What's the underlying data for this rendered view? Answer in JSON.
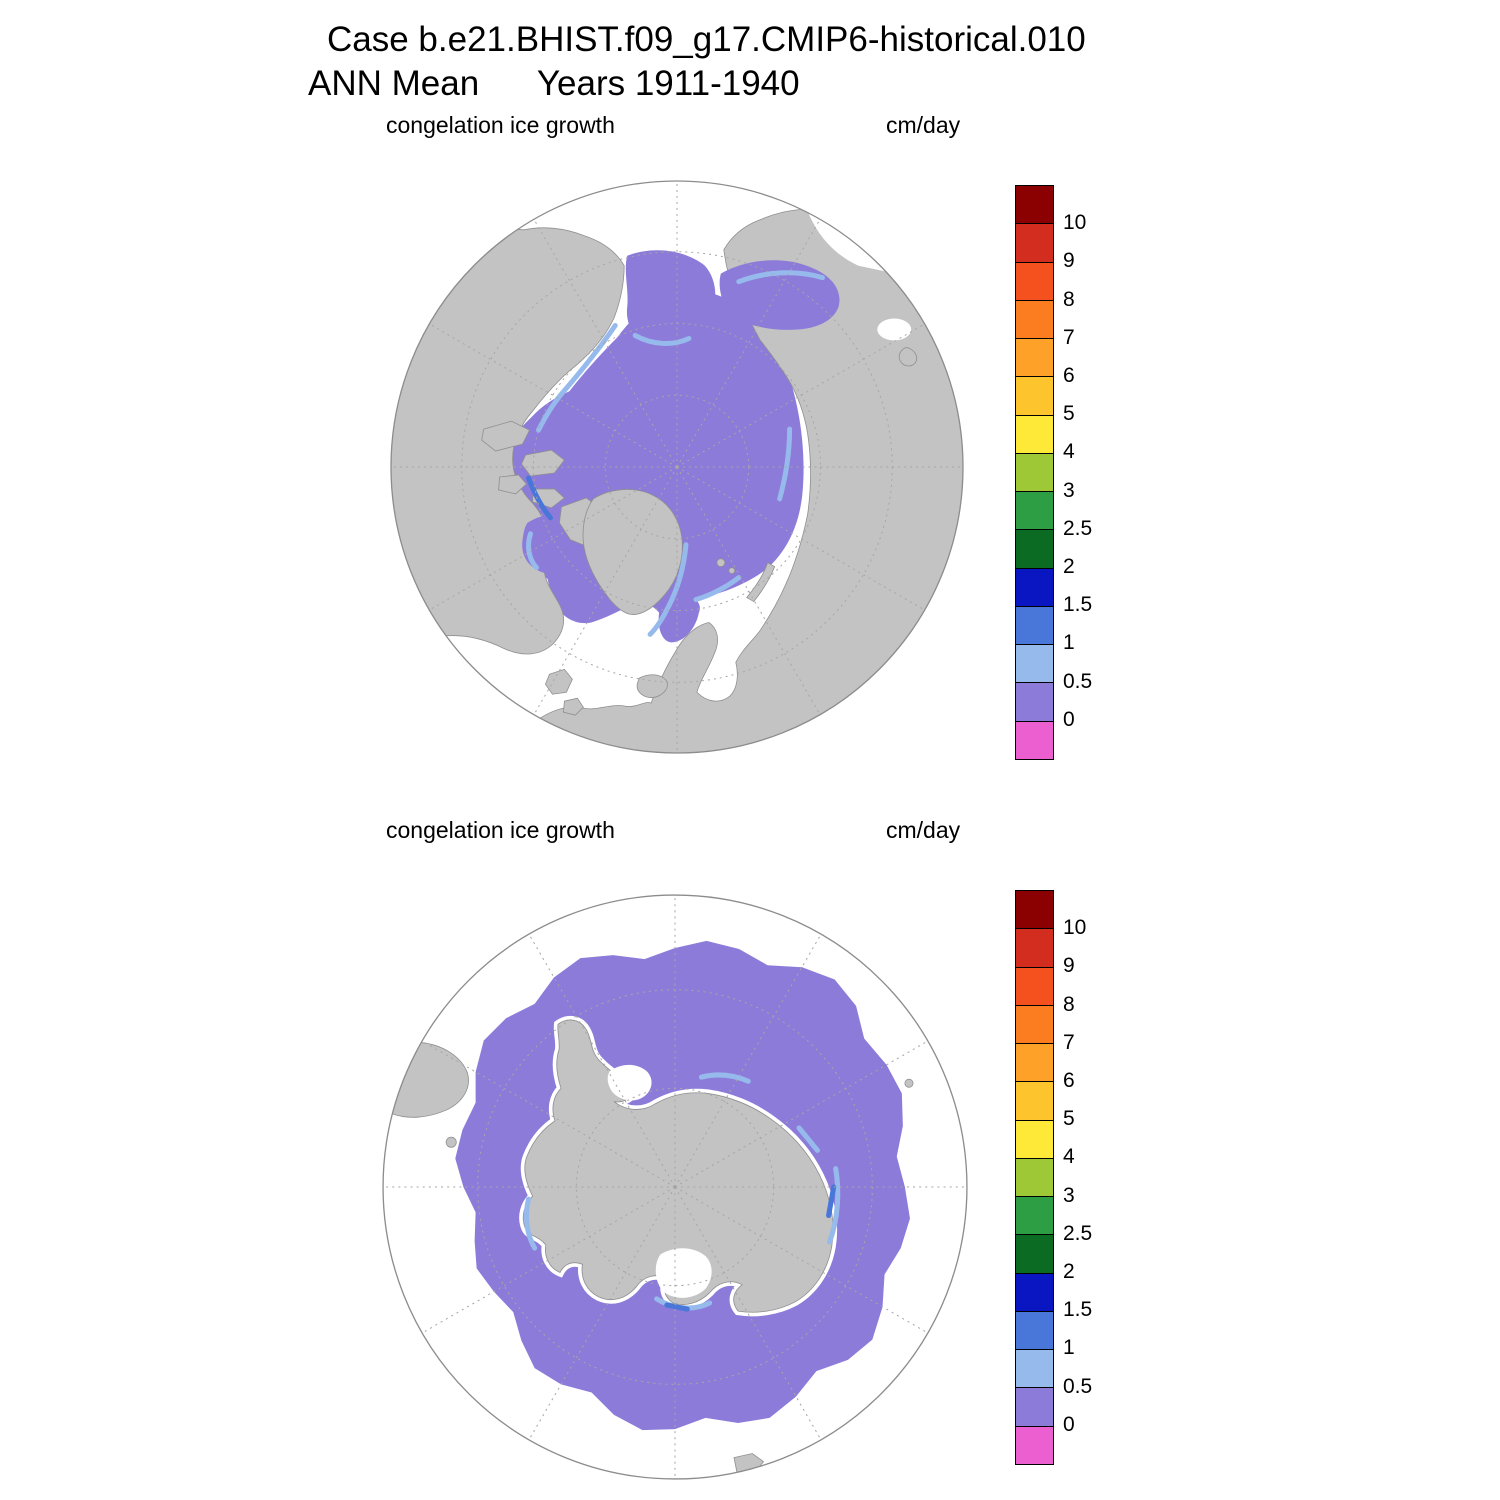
{
  "figure": {
    "title": "Case b.e21.BHIST.f09_g17.CMIP6-historical.010",
    "subtitle": "ANN Mean      Years 1911-1940"
  },
  "panels": [
    {
      "hemisphere": "Northern Hemisphere",
      "variable_label": "congelation ice growth",
      "units_label": "cm/day"
    },
    {
      "hemisphere": "Southern Hemisphere",
      "variable_label": "congelation ice growth",
      "units_label": "cm/day"
    }
  ],
  "chart_data": {
    "type": "heatmap",
    "title": "Case b.e21.BHIST.f09_g17.CMIP6-historical.010",
    "subtitle": "ANN Mean Years 1911-1940",
    "variable": "congelation ice growth",
    "units": "cm/day",
    "projection": "polar stereographic, two panels (Arctic above, Antarctic below), dashed graticule every 30 deg longitude",
    "colorbar": {
      "orientation": "vertical",
      "tick_labels_top_to_bottom": [
        "10",
        "9",
        "8",
        "7",
        "6",
        "5",
        "4",
        "3",
        "2.5",
        "2",
        "1.5",
        "1",
        "0.5",
        "0"
      ],
      "levels_ascending": [
        0,
        0.5,
        1,
        1.5,
        2,
        2.5,
        3,
        4,
        5,
        6,
        7,
        8,
        9,
        10
      ],
      "colors_top_to_bottom": [
        "#8b0000",
        "#d22d1e",
        "#f4511e",
        "#fb7d1f",
        "#fda128",
        "#fdc42e",
        "#fee838",
        "#9fc837",
        "#2e9e45",
        "#0b6b22",
        "#0b16c3",
        "#4876d9",
        "#97baed",
        "#8d7bd9",
        "#ec5fd1"
      ]
    },
    "map_colors": {
      "land": "#c3c3c3",
      "ocean_no_ice": "#ffffff",
      "bin_0_to_0.5": "#8d7bd9",
      "bin_0.5_to_1": "#97baed",
      "bin_1_to_1.5": "#4876d9",
      "graticule": "#a6a6a6"
    },
    "panel_values": [
      {
        "hemisphere": "north",
        "summary": "Central Arctic Ocean, Hudson Bay, Baffin Bay, Bering Sea and Sea of Okhotsk show ~0-0.5 cm/day (purple); narrow coastal bands of ~0.5-1 cm/day (light blue) and isolated ~1-1.5 cm/day (medium blue) along the Alaskan coast, Canadian Archipelago channels, east Greenland and Kara/Barents coasts; open mid-latitude ocean has no ice growth (white)."
      },
      {
        "hemisphere": "south",
        "summary": "Circumpolar Southern Ocean sea-ice ring around Antarctica shows ~0-0.5 cm/day (purple); coastal Antarctic patches of ~0.5-1 cm/day (light blue) and ~1-1.5 cm/day (medium blue), e.g. Ross Sea and east Antarctic coast; white gaps (polynyas/shelves) between continent and ice ring; open ocean white."
      }
    ]
  }
}
